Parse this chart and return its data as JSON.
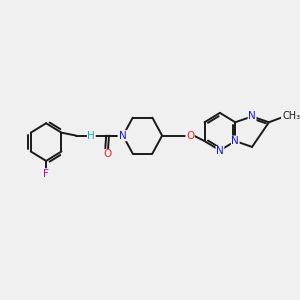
{
  "bg_color": "#f0f0f0",
  "bond_color": "#1a1a1a",
  "bond_width": 1.4,
  "atom_colors": {
    "F": "#cc00cc",
    "N": "#1414ff",
    "O": "#ff2020",
    "H": "#20aaaa",
    "C": "#1a1a1a"
  },
  "font_size": 7.5,
  "fig_size": [
    3.0,
    3.0
  ],
  "dpi": 100
}
